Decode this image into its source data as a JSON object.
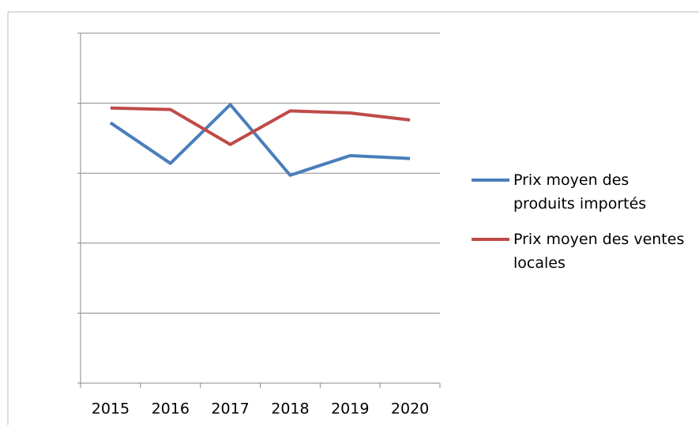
{
  "chart_data": {
    "type": "line",
    "categories": [
      "2015",
      "2016",
      "2017",
      "2018",
      "2019",
      "2020"
    ],
    "series": [
      {
        "name": "Prix moyen des produits importés",
        "color": "#4a7ebb",
        "values": [
          3.72,
          3.14,
          3.98,
          2.97,
          3.25,
          3.21
        ]
      },
      {
        "name": "Prix moyen des ventes locales",
        "color": "#be4b48",
        "values": [
          3.93,
          3.91,
          3.41,
          3.89,
          3.86,
          3.76
        ]
      }
    ],
    "ylim": [
      0,
      5
    ],
    "yticks": [
      0,
      1,
      2,
      3,
      4,
      5
    ],
    "grid": true,
    "legend": "right"
  }
}
